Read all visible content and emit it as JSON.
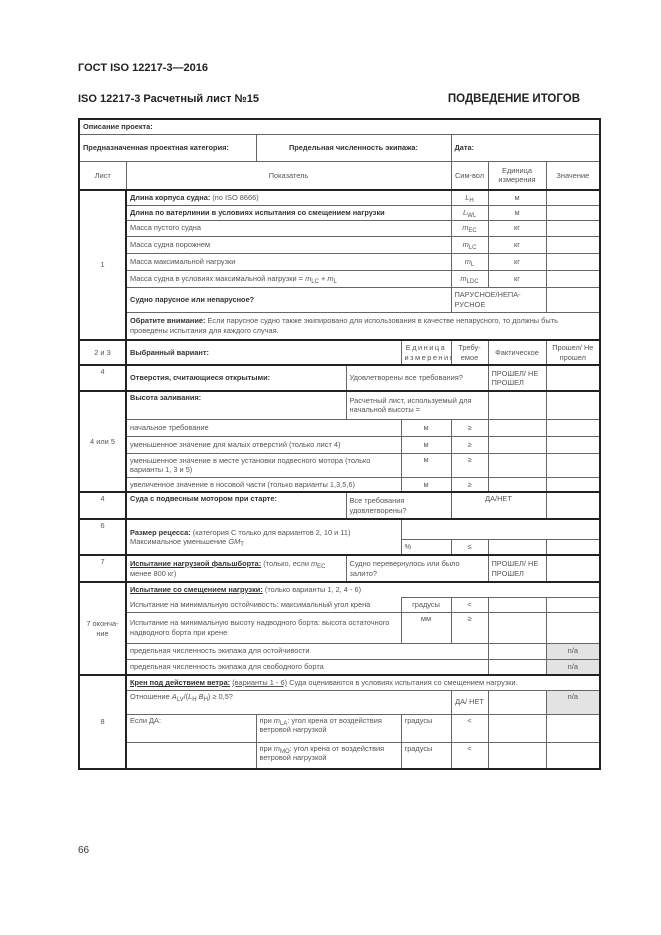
{
  "page": {
    "standard": "ГОСТ ISO 12217-3—2016",
    "sheet_title": "ISO 12217-3 Расчетный лист №15",
    "section_title": "ПОДВЕДЕНИЕ ИТОГОВ",
    "page_number": "66"
  },
  "form": {
    "project_description": "Описание проекта:",
    "design_category": "Предназначенная проектная категория:",
    "crew_limit": "Предельная численность экипажа:",
    "date": "Дата:"
  },
  "columns": {
    "sheet": "Лист",
    "indicator": "Показатель",
    "symbol": "Сим-вол",
    "unit": "Единица измерения",
    "value": "Значение"
  },
  "s1": {
    "sheet": "1",
    "rows": [
      {
        "label": "Длина корпуса судна:",
        "note": " (по ISO 8666)",
        "sym": "L",
        "sub": "H",
        "unit": "м"
      },
      {
        "label": "Длина по ватерлинии в условиях испытания со смещением нагрузки",
        "sym": "L",
        "sub": "WL",
        "unit": "м"
      },
      {
        "label": "Масса пустого судна",
        "sym": "m",
        "sub": "EC",
        "unit": "кг"
      },
      {
        "label": "Масса судна порожнем",
        "sym": "m",
        "sub": "LC",
        "unit": "кг"
      },
      {
        "label": "Масса максимальной нагрузки",
        "sym": "m",
        "sub": "L",
        "unit": "кг"
      },
      {
        "label": "Масса судна в условиях максимальной нагрузки = ",
        "f1": "m",
        "f1sub": "LC",
        "plus": " + ",
        "f2": "m",
        "f2sub": "L",
        "sym": "m",
        "sub": "LDC",
        "unit": "кг"
      }
    ],
    "sail_q": "Судно парусное или непарусное?",
    "sail_opts": "ПАРУСНОЕ/НЕПА-РУСНОЕ",
    "attention_label": "Обратите внимание:",
    "attention_text": " Если парусное судно также экипировано для использования в качестве непарусного, то должны быть проведены испытания для каждого случая."
  },
  "s23": {
    "sheet": "2 и 3",
    "label": "Выбранный вариант:",
    "unit": "Единица измерения",
    "required": "Требу-емое",
    "actual": "Фактическое",
    "pass": "Прошел/ Не прошел"
  },
  "s4a": {
    "sheet": "4",
    "label": "Отверстия, считающиеся открытыми:",
    "question": "Удовлетворены все требования?",
    "answer": "ПРОШЕЛ/ НЕ ПРОШЕЛ"
  },
  "s45": {
    "sheet": "4 или 5",
    "label": "Высота заливания:",
    "calc": "Расчетный лист, используемый для начальной высоты =",
    "rows": [
      {
        "label": "начальное требование",
        "unit": "м",
        "op": "≥"
      },
      {
        "label": "уменьшенное значение для малых отверстий (только лист 4)",
        "unit": "м",
        "op": "≥"
      },
      {
        "label": "уменьшенное значение в месте установки подвесного мотора (только варианты 1, 3 и 5)",
        "unit": "м",
        "op": "≥"
      },
      {
        "label": "увеличенное значение в носовой части (только варианты 1,3,5,6)",
        "unit": "м",
        "op": "≥"
      }
    ]
  },
  "s4b": {
    "sheet": "4",
    "label": "Суда с подвесным мотором при старте:",
    "question": "Все требования удовлетворены?",
    "answer": "ДА/НЕТ"
  },
  "s6": {
    "sheet": "6",
    "label": "Размер рецесса:",
    "note": " (категория С только для вариантов 2, 10 и 11)",
    "line2": "Максимальное уменьшение ",
    "sym": "GM",
    "sub": "T",
    "unit": "%",
    "op": "≤"
  },
  "s7": {
    "sheet": "7",
    "label": "Испытание нагрузкой фальшборта:",
    "note": " (только, если ",
    "sym": "m",
    "sub": "EC",
    "note2": " менее 800 кг)",
    "question": "Судно перевернулось или было залито?",
    "answer": "ПРОШЕЛ/ НЕ ПРОШЕЛ"
  },
  "s7b": {
    "sheet": "7 оконча-ние",
    "label": "Испытание со смещением нагрузки:",
    "note": " (только варианты 1, 2, 4 - 6)",
    "rows": [
      {
        "label": "Испытание на минимальную остойчивость: максимальный угол крена",
        "unit": "градусы",
        "op": "<"
      },
      {
        "label": "Испытание на минимальную высоту надводного борта: высота остаточного надводного борта при крене",
        "unit": "мм",
        "op": "≥"
      }
    ],
    "crew_stability": "предельная численность экипажа для остойчивости",
    "crew_freeboard": "предельная численность экипажа для свободного борта",
    "na": "n/a"
  },
  "s8": {
    "sheet": "8",
    "label": "Крен под действием ветра:",
    "variants": "(варианты 1 - 6)",
    "note": " Суда оцениваются в условиях испытания со смещением нагрузки.",
    "ratio_pre": "Отношение ",
    "ratio_a": "A",
    "ratio_asub": "LV",
    "ratio_mid": "/(",
    "ratio_l": "L",
    "ratio_lsub": "H",
    "ratio_b": " B",
    "ratio_bsub": "H",
    "ratio_post": ") ≥ 0,5?",
    "ratio_answer": "ДА/ НЕТ",
    "na": "n/a",
    "if_yes": "Если ДА:",
    "rows": [
      {
        "pre": "при ",
        "sym": "m",
        "sub": "LA",
        "text": ": угол крена от воздействия ветровой нагрузкой",
        "unit": "градусы",
        "op": "<"
      },
      {
        "pre": "при ",
        "sym": "m",
        "sub": "MO",
        "text": ": угол крена от воздействия ветровой нагрузкой",
        "unit": "градусы",
        "op": "<"
      }
    ]
  }
}
